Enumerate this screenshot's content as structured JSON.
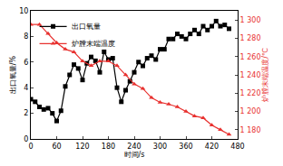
{
  "chart_data": {
    "type": "line",
    "x_label": "时间/s",
    "y_label": "出口氧量/%",
    "y2_label": "炉膛末端温度/℃",
    "xlim": [
      0,
      480
    ],
    "xticks": [
      0,
      60,
      120,
      180,
      240,
      300,
      360,
      420,
      480
    ],
    "ylim": [
      0,
      10
    ],
    "yticks": [
      0,
      2,
      4,
      6,
      8,
      10
    ],
    "y2lim": [
      1170,
      1310
    ],
    "y2ticks": [
      {
        "value": 1180,
        "label": "1 180"
      },
      {
        "value": 1200,
        "label": "1 200"
      },
      {
        "value": 1220,
        "label": "1 220"
      },
      {
        "value": 1240,
        "label": "1 240"
      },
      {
        "value": 1260,
        "label": "1 260"
      },
      {
        "value": 1280,
        "label": "1 280"
      },
      {
        "value": 1300,
        "label": "1 300"
      }
    ],
    "grid": false,
    "legend": "upper left",
    "series": [
      {
        "name": "出口氧量",
        "color": "#000000",
        "marker": "square",
        "axis": "y",
        "x": [
          0,
          10,
          20,
          30,
          40,
          50,
          60,
          70,
          80,
          90,
          100,
          110,
          120,
          130,
          140,
          150,
          160,
          170,
          180,
          190,
          200,
          210,
          220,
          230,
          240,
          250,
          260,
          270,
          280,
          290,
          300,
          310,
          320,
          330,
          340,
          350,
          360,
          370,
          380,
          390,
          400,
          410,
          420,
          430,
          440,
          450,
          460
        ],
        "values": [
          3.1,
          2.9,
          2.5,
          2.3,
          2.4,
          2.0,
          1.4,
          2.2,
          4.1,
          5.0,
          5.8,
          5.5,
          4.6,
          5.9,
          6.4,
          6.1,
          5.2,
          6.8,
          6.2,
          6.3,
          4.0,
          2.9,
          3.8,
          4.5,
          5.2,
          6.0,
          5.7,
          6.3,
          6.5,
          6.2,
          7.0,
          7.0,
          7.8,
          7.8,
          8.2,
          8.0,
          7.8,
          8.2,
          8.5,
          8.2,
          8.8,
          8.5,
          8.8,
          9.2,
          8.8,
          8.9,
          8.6
        ]
      },
      {
        "name": "炉膛末端温度",
        "color": "#e8312f",
        "marker": "triangle-up",
        "axis": "y2",
        "x": [
          0,
          20,
          40,
          60,
          80,
          100,
          120,
          140,
          160,
          180,
          200,
          220,
          240,
          260,
          280,
          300,
          320,
          340,
          360,
          380,
          400,
          420,
          440,
          460
        ],
        "values": [
          1295,
          1295,
          1285,
          1275,
          1268,
          1265,
          1255,
          1250,
          1255,
          1255,
          1250,
          1240,
          1230,
          1225,
          1215,
          1210,
          1208,
          1205,
          1200,
          1195,
          1193,
          1185,
          1180,
          1175
        ]
      }
    ]
  }
}
